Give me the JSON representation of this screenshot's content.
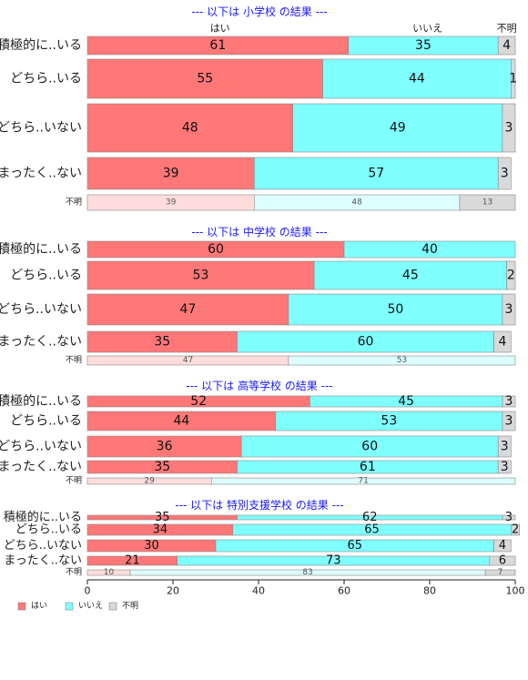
{
  "chart_data": {
    "type": "bar",
    "orientation": "horizontal",
    "stacked": "percent",
    "xlim": [
      0,
      100
    ],
    "xticks": [
      0,
      20,
      40,
      60,
      80,
      100
    ],
    "answers": [
      "はい",
      "いいえ",
      "不明"
    ],
    "colors": [
      "#ff7777",
      "#80ffff",
      "#d9d9d9"
    ],
    "unknown_colors": [
      "#ffdddd",
      "#ddffff",
      "#d9d9d9"
    ],
    "legend": {
      "position": "bottom-left",
      "items": [
        "はい",
        "いいえ",
        "不明"
      ]
    },
    "panels": [
      {
        "title": "--- 以下は 小学校 の結果 ---",
        "column_headers": [
          "はい",
          "いいえ",
          "不明"
        ],
        "rows": [
          {
            "label": "積極的に..いる",
            "values": [
              61,
              35,
              4
            ]
          },
          {
            "label": "どちら..いる",
            "values": [
              55,
              44,
              1
            ]
          },
          {
            "label": "どちら..いない",
            "values": [
              48,
              49,
              3
            ]
          },
          {
            "label": "まったく..ない",
            "values": [
              39,
              57,
              3
            ]
          }
        ],
        "unknown_row": {
          "label": "不明",
          "values": [
            39,
            48,
            13
          ]
        }
      },
      {
        "title": "--- 以下は 中学校 の結果 ---",
        "column_headers": [],
        "rows": [
          {
            "label": "積極的に..いる",
            "values": [
              60,
              40,
              0
            ]
          },
          {
            "label": "どちら..いる",
            "values": [
              53,
              45,
              2
            ]
          },
          {
            "label": "どちら..いない",
            "values": [
              47,
              50,
              3
            ]
          },
          {
            "label": "まったく..ない",
            "values": [
              35,
              60,
              4
            ]
          }
        ],
        "unknown_row": {
          "label": "不明",
          "values": [
            47,
            53,
            0
          ]
        }
      },
      {
        "title": "--- 以下は 高等学校 の結果 ---",
        "column_headers": [],
        "rows": [
          {
            "label": "積極的に..いる",
            "values": [
              52,
              45,
              3
            ]
          },
          {
            "label": "どちら..いる",
            "values": [
              44,
              53,
              3
            ]
          },
          {
            "label": "どちら..いない",
            "values": [
              36,
              60,
              3
            ]
          },
          {
            "label": "まったく..ない",
            "values": [
              35,
              61,
              3
            ]
          }
        ],
        "unknown_row": {
          "label": "不明",
          "values": [
            29,
            71,
            0
          ]
        }
      },
      {
        "title": "--- 以下は 特別支援学校 の結果 ---",
        "column_headers": [],
        "rows": [
          {
            "label": "積極的に..いる",
            "values": [
              35,
              62,
              3
            ]
          },
          {
            "label": "どちら..いる",
            "values": [
              34,
              65,
              2
            ]
          },
          {
            "label": "どちら..いない",
            "values": [
              30,
              65,
              4
            ]
          },
          {
            "label": "まったく..ない",
            "values": [
              21,
              73,
              6
            ]
          }
        ],
        "unknown_row": {
          "label": "不明",
          "values": [
            10,
            83,
            7
          ]
        }
      }
    ]
  }
}
